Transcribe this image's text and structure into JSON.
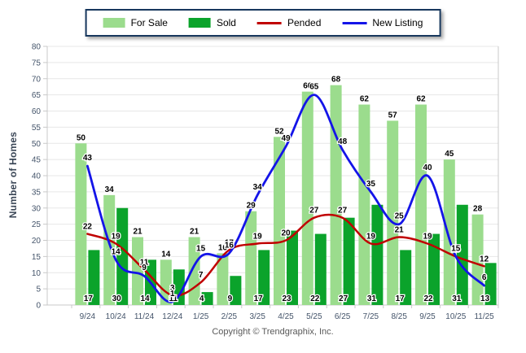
{
  "chart_data": {
    "type": "bar",
    "subtype": "grouped-bars-with-smooth-lines",
    "title": "",
    "ylabel": "Number of Homes",
    "xlabel": "",
    "ylim": [
      0,
      80
    ],
    "ytick_step": 5,
    "grid": true,
    "legend_position": "top-center",
    "categories": [
      "9/24",
      "10/24",
      "11/24",
      "12/24",
      "1/25",
      "2/25",
      "3/25",
      "4/25",
      "5/25",
      "6/25",
      "7/25",
      "8/25",
      "9/25",
      "10/25",
      "11/25"
    ],
    "series": [
      {
        "name": "For Sale",
        "type": "bar",
        "color": "#9BDC8D",
        "values": [
          50,
          34,
          21,
          14,
          21,
          16,
          29,
          52,
          66,
          68,
          62,
          57,
          62,
          45,
          28
        ]
      },
      {
        "name": "Sold",
        "type": "bar",
        "color": "#0BA32B",
        "values": [
          17,
          30,
          14,
          11,
          4,
          9,
          17,
          23,
          22,
          27,
          31,
          17,
          22,
          31,
          13
        ]
      },
      {
        "name": "Pended",
        "type": "line",
        "color": "#C00000",
        "values": [
          22,
          19,
          11,
          3,
          7,
          17,
          19,
          20,
          27,
          27,
          19,
          21,
          19,
          15,
          12
        ]
      },
      {
        "name": "New Listing",
        "type": "line",
        "color": "#1414E8",
        "values": [
          43,
          14,
          9,
          1,
          15,
          16,
          34,
          49,
          65,
          48,
          35,
          25,
          40,
          15,
          6
        ]
      }
    ],
    "value_label_color": "#000000",
    "axis_tick_color": "#44546A",
    "gridline_color": "#E7E7E7",
    "axis_line_color": "#C9C9C9"
  },
  "footer": {
    "copyright": "Copyright © Trendgraphix, Inc."
  }
}
